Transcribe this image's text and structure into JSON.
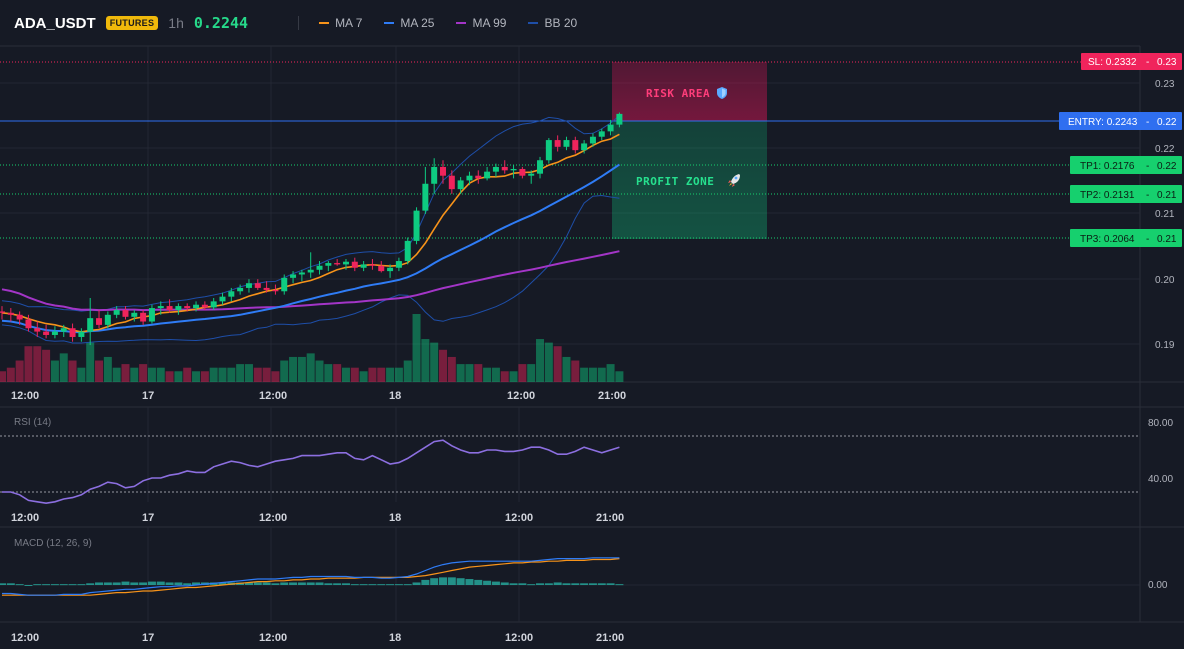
{
  "header": {
    "symbol": "ADA_USDT",
    "badge": "FUTURES",
    "timeframe": "1h",
    "last_price": "0.2244",
    "indicators": [
      {
        "label": "MA 7",
        "color": "#f7931a"
      },
      {
        "label": "MA 25",
        "color": "#2f7cf6"
      },
      {
        "label": "MA 99",
        "color": "#a335c7"
      },
      {
        "label": "BB 20",
        "color": "#1e4ea8"
      }
    ]
  },
  "price_axis": {
    "ticks": [
      "0.23",
      "0.22",
      "0.21",
      "0.20",
      "0.19"
    ]
  },
  "levels": {
    "sl": {
      "label": "SL: 0.2332",
      "axis": "0.23",
      "color": "#f0245c"
    },
    "entry": {
      "label": "ENTRY: 0.2243",
      "axis": "0.22",
      "color": "#2f6ff0"
    },
    "tp1": {
      "label": "TP1: 0.2176",
      "axis": "0.22",
      "color": "#16d06e"
    },
    "tp2": {
      "label": "TP2: 0.2131",
      "axis": "0.21",
      "color": "#16d06e"
    },
    "tp3": {
      "label": "TP3: 0.2064",
      "axis": "0.21",
      "color": "#16d06e"
    }
  },
  "zones": {
    "risk": {
      "label": "RISK AREA",
      "icon": "shield-icon"
    },
    "profit": {
      "label": "PROFIT ZONE",
      "icon": "rocket-icon"
    }
  },
  "time_axis": [
    "12:00",
    "17",
    "12:00",
    "18",
    "12:00",
    "21:00"
  ],
  "rsi": {
    "title": "RSI (14)",
    "ticks": [
      "80.00",
      "40.00"
    ]
  },
  "macd": {
    "title": "MACD (12, 26, 9)",
    "ticks": [
      "0.00"
    ]
  },
  "colors": {
    "up": "#0ecb81",
    "down": "#f0245c",
    "background": "#161a25",
    "grid": "#232733"
  },
  "chart_data": {
    "type": "candlestick",
    "title": "ADA_USDT 1h",
    "ylim": [
      0.1845,
      0.2345
    ],
    "x_labels": [
      "12:00",
      "17",
      "12:00",
      "18",
      "12:00",
      "21:00"
    ],
    "candles": [
      {
        "o": 0.195,
        "h": 0.1958,
        "l": 0.1938,
        "c": 0.1948
      },
      {
        "o": 0.1948,
        "h": 0.1955,
        "l": 0.1935,
        "c": 0.1945
      },
      {
        "o": 0.1945,
        "h": 0.195,
        "l": 0.193,
        "c": 0.1938
      },
      {
        "o": 0.1938,
        "h": 0.1945,
        "l": 0.192,
        "c": 0.1925
      },
      {
        "o": 0.1925,
        "h": 0.1935,
        "l": 0.1912,
        "c": 0.192
      },
      {
        "o": 0.192,
        "h": 0.193,
        "l": 0.191,
        "c": 0.1915
      },
      {
        "o": 0.1915,
        "h": 0.1928,
        "l": 0.191,
        "c": 0.192
      },
      {
        "o": 0.192,
        "h": 0.193,
        "l": 0.1912,
        "c": 0.1925
      },
      {
        "o": 0.1925,
        "h": 0.1932,
        "l": 0.1905,
        "c": 0.1912
      },
      {
        "o": 0.1912,
        "h": 0.1925,
        "l": 0.1905,
        "c": 0.192
      },
      {
        "o": 0.192,
        "h": 0.197,
        "l": 0.19,
        "c": 0.194
      },
      {
        "o": 0.194,
        "h": 0.1952,
        "l": 0.1925,
        "c": 0.193
      },
      {
        "o": 0.193,
        "h": 0.195,
        "l": 0.1925,
        "c": 0.1945
      },
      {
        "o": 0.1945,
        "h": 0.1958,
        "l": 0.194,
        "c": 0.1952
      },
      {
        "o": 0.1952,
        "h": 0.1958,
        "l": 0.1938,
        "c": 0.1942
      },
      {
        "o": 0.1942,
        "h": 0.1952,
        "l": 0.1935,
        "c": 0.1948
      },
      {
        "o": 0.1948,
        "h": 0.1952,
        "l": 0.193,
        "c": 0.1935
      },
      {
        "o": 0.1935,
        "h": 0.196,
        "l": 0.1932,
        "c": 0.1955
      },
      {
        "o": 0.1955,
        "h": 0.1965,
        "l": 0.1945,
        "c": 0.1958
      },
      {
        "o": 0.1958,
        "h": 0.1968,
        "l": 0.1948,
        "c": 0.1952
      },
      {
        "o": 0.1952,
        "h": 0.1962,
        "l": 0.1945,
        "c": 0.1958
      },
      {
        "o": 0.1958,
        "h": 0.1962,
        "l": 0.195,
        "c": 0.1955
      },
      {
        "o": 0.1955,
        "h": 0.1965,
        "l": 0.195,
        "c": 0.196
      },
      {
        "o": 0.196,
        "h": 0.1965,
        "l": 0.1952,
        "c": 0.1956
      },
      {
        "o": 0.1956,
        "h": 0.197,
        "l": 0.1952,
        "c": 0.1965
      },
      {
        "o": 0.1965,
        "h": 0.1978,
        "l": 0.196,
        "c": 0.1972
      },
      {
        "o": 0.1972,
        "h": 0.1985,
        "l": 0.1965,
        "c": 0.198
      },
      {
        "o": 0.198,
        "h": 0.199,
        "l": 0.1975,
        "c": 0.1985
      },
      {
        "o": 0.1985,
        "h": 0.1998,
        "l": 0.1978,
        "c": 0.1992
      },
      {
        "o": 0.1992,
        "h": 0.1998,
        "l": 0.1982,
        "c": 0.1985
      },
      {
        "o": 0.1985,
        "h": 0.1995,
        "l": 0.1978,
        "c": 0.1982
      },
      {
        "o": 0.1982,
        "h": 0.199,
        "l": 0.1975,
        "c": 0.198
      },
      {
        "o": 0.198,
        "h": 0.2005,
        "l": 0.1975,
        "c": 0.2
      },
      {
        "o": 0.2,
        "h": 0.201,
        "l": 0.1992,
        "c": 0.2005
      },
      {
        "o": 0.2005,
        "h": 0.2012,
        "l": 0.1995,
        "c": 0.2008
      },
      {
        "o": 0.2008,
        "h": 0.2038,
        "l": 0.2,
        "c": 0.2012
      },
      {
        "o": 0.2012,
        "h": 0.2025,
        "l": 0.2005,
        "c": 0.2018
      },
      {
        "o": 0.2018,
        "h": 0.2025,
        "l": 0.201,
        "c": 0.2022
      },
      {
        "o": 0.2022,
        "h": 0.2028,
        "l": 0.2018,
        "c": 0.202
      },
      {
        "o": 0.202,
        "h": 0.2028,
        "l": 0.2012,
        "c": 0.2024
      },
      {
        "o": 0.2024,
        "h": 0.203,
        "l": 0.201,
        "c": 0.2015
      },
      {
        "o": 0.2015,
        "h": 0.2025,
        "l": 0.201,
        "c": 0.202
      },
      {
        "o": 0.202,
        "h": 0.2028,
        "l": 0.2012,
        "c": 0.2018
      },
      {
        "o": 0.2018,
        "h": 0.2025,
        "l": 0.2008,
        "c": 0.201
      },
      {
        "o": 0.201,
        "h": 0.202,
        "l": 0.2,
        "c": 0.2015
      },
      {
        "o": 0.2015,
        "h": 0.203,
        "l": 0.201,
        "c": 0.2025
      },
      {
        "o": 0.2025,
        "h": 0.206,
        "l": 0.202,
        "c": 0.2055
      },
      {
        "o": 0.2055,
        "h": 0.2105,
        "l": 0.205,
        "c": 0.21
      },
      {
        "o": 0.21,
        "h": 0.2165,
        "l": 0.2095,
        "c": 0.214
      },
      {
        "o": 0.214,
        "h": 0.2178,
        "l": 0.2125,
        "c": 0.2165
      },
      {
        "o": 0.2165,
        "h": 0.2175,
        "l": 0.214,
        "c": 0.2152
      },
      {
        "o": 0.2152,
        "h": 0.216,
        "l": 0.2125,
        "c": 0.2132
      },
      {
        "o": 0.2132,
        "h": 0.215,
        "l": 0.2125,
        "c": 0.2145
      },
      {
        "o": 0.2145,
        "h": 0.2158,
        "l": 0.2138,
        "c": 0.2152
      },
      {
        "o": 0.2152,
        "h": 0.216,
        "l": 0.214,
        "c": 0.2148
      },
      {
        "o": 0.2148,
        "h": 0.2165,
        "l": 0.2145,
        "c": 0.2158
      },
      {
        "o": 0.2158,
        "h": 0.217,
        "l": 0.215,
        "c": 0.2165
      },
      {
        "o": 0.2165,
        "h": 0.2175,
        "l": 0.2155,
        "c": 0.216
      },
      {
        "o": 0.216,
        "h": 0.2168,
        "l": 0.2148,
        "c": 0.2162
      },
      {
        "o": 0.2162,
        "h": 0.2165,
        "l": 0.2148,
        "c": 0.2152
      },
      {
        "o": 0.2152,
        "h": 0.216,
        "l": 0.214,
        "c": 0.2155
      },
      {
        "o": 0.2155,
        "h": 0.218,
        "l": 0.2148,
        "c": 0.2175
      },
      {
        "o": 0.2175,
        "h": 0.2208,
        "l": 0.217,
        "c": 0.2205
      },
      {
        "o": 0.2205,
        "h": 0.2212,
        "l": 0.2188,
        "c": 0.2195
      },
      {
        "o": 0.2195,
        "h": 0.221,
        "l": 0.219,
        "c": 0.2205
      },
      {
        "o": 0.2205,
        "h": 0.221,
        "l": 0.2185,
        "c": 0.219
      },
      {
        "o": 0.219,
        "h": 0.2205,
        "l": 0.2185,
        "c": 0.22
      },
      {
        "o": 0.22,
        "h": 0.2215,
        "l": 0.2195,
        "c": 0.221
      },
      {
        "o": 0.221,
        "h": 0.2222,
        "l": 0.2205,
        "c": 0.2218
      },
      {
        "o": 0.2218,
        "h": 0.2235,
        "l": 0.2212,
        "c": 0.2228
      },
      {
        "o": 0.2228,
        "h": 0.2246,
        "l": 0.2224,
        "c": 0.2244
      }
    ],
    "volume": [
      3,
      4,
      6,
      10,
      10,
      9,
      6,
      8,
      6,
      4,
      11,
      6,
      7,
      4,
      5,
      4,
      5,
      4,
      4,
      3,
      3,
      4,
      3,
      3,
      4,
      4,
      4,
      5,
      5,
      4,
      4,
      3,
      6,
      7,
      7,
      8,
      6,
      5,
      5,
      4,
      4,
      3,
      4,
      4,
      4,
      4,
      6,
      19,
      12,
      11,
      9,
      7,
      5,
      5,
      5,
      4,
      4,
      3,
      3,
      5,
      5,
      12,
      11,
      10,
      7,
      6,
      4,
      4,
      4,
      5,
      3
    ],
    "rsi_values": [
      40,
      40,
      38,
      34,
      33,
      32,
      33,
      35,
      36,
      38,
      42,
      44,
      47,
      46,
      43,
      44,
      48,
      50,
      50,
      52,
      53,
      55,
      54,
      54,
      58,
      60,
      62,
      61,
      59,
      58,
      60,
      62,
      63,
      64,
      66,
      66,
      66,
      67,
      68,
      68,
      64,
      63,
      66,
      63,
      60,
      61,
      64,
      68,
      72,
      76,
      77,
      73,
      70,
      68,
      68,
      70,
      70,
      69,
      69,
      70,
      72,
      72,
      70,
      67,
      67,
      69,
      72,
      70,
      68,
      70,
      72
    ],
    "macd_line": [
      -0.001,
      -0.001,
      -0.0011,
      -0.0012,
      -0.0012,
      -0.0012,
      -0.0012,
      -0.0011,
      -0.0011,
      -0.0011,
      -0.0009,
      -0.0008,
      -0.0007,
      -0.0006,
      -0.0005,
      -0.0005,
      -0.0004,
      -0.0003,
      -0.0002,
      -0.0002,
      -0.0001,
      -0.0001,
      0.0,
      0.0001,
      0.0002,
      0.0003,
      0.0004,
      0.0005,
      0.0006,
      0.0007,
      0.0007,
      0.0007,
      0.0008,
      0.0009,
      0.0009,
      0.001,
      0.001,
      0.001,
      0.001,
      0.001,
      0.0009,
      0.0009,
      0.0009,
      0.0008,
      0.0008,
      0.0009,
      0.001,
      0.0013,
      0.0017,
      0.0021,
      0.0024,
      0.0026,
      0.0027,
      0.0028,
      0.0028,
      0.0028,
      0.0028,
      0.0028,
      0.0028,
      0.0028,
      0.0028,
      0.0029,
      0.003,
      0.0031,
      0.0031,
      0.0031,
      0.0031,
      0.0032,
      0.0032,
      0.0032,
      0.0032
    ],
    "macd_signal": [
      -0.0012,
      -0.0012,
      -0.0012,
      -0.0012,
      -0.0012,
      -0.0012,
      -0.0012,
      -0.0012,
      -0.0012,
      -0.0012,
      -0.0012,
      -0.0011,
      -0.001,
      -0.0009,
      -0.0009,
      -0.0008,
      -0.0007,
      -0.0007,
      -0.0006,
      -0.0005,
      -0.0004,
      -0.0003,
      -0.0003,
      -0.0002,
      -0.0001,
      0.0,
      0.0001,
      0.0002,
      0.0003,
      0.0004,
      0.0004,
      0.0005,
      0.0005,
      0.0006,
      0.0006,
      0.0007,
      0.0007,
      0.0008,
      0.0008,
      0.0008,
      0.0008,
      0.0009,
      0.0009,
      0.0009,
      0.0009,
      0.0009,
      0.0009,
      0.001,
      0.0011,
      0.0013,
      0.0015,
      0.0017,
      0.0019,
      0.0021,
      0.0022,
      0.0023,
      0.0024,
      0.0025,
      0.0026,
      0.0026,
      0.0027,
      0.0027,
      0.0028,
      0.0028,
      0.0029,
      0.0029,
      0.0029,
      0.003,
      0.003,
      0.003,
      0.0031
    ],
    "macd_hist": [
      0.0002,
      0.0002,
      0.0001,
      0.0,
      0.0001,
      0.0001,
      0.0001,
      0.0001,
      0.0001,
      0.0001,
      0.0002,
      0.0003,
      0.0003,
      0.0003,
      0.0004,
      0.0003,
      0.0003,
      0.0004,
      0.0004,
      0.0003,
      0.0003,
      0.0002,
      0.0003,
      0.0003,
      0.0003,
      0.0003,
      0.0003,
      0.0003,
      0.0003,
      0.0003,
      0.0003,
      0.0002,
      0.0003,
      0.0003,
      0.0003,
      0.0003,
      0.0003,
      0.0002,
      0.0002,
      0.0002,
      0.0001,
      0.0001,
      0.0001,
      0.0001,
      0.0001,
      0.0001,
      0.0001,
      0.0003,
      0.0006,
      0.0008,
      0.0009,
      0.0009,
      0.0008,
      0.0007,
      0.0006,
      0.0005,
      0.0004,
      0.0003,
      0.0002,
      0.0002,
      0.0001,
      0.0002,
      0.0002,
      0.0003,
      0.0002,
      0.0002,
      0.0002,
      0.0002,
      0.0002,
      0.0002,
      0.0001
    ]
  }
}
